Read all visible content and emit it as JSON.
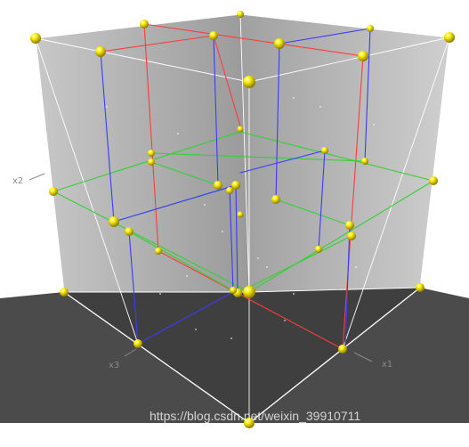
{
  "axes": {
    "x1": "x1",
    "x2": "x2",
    "x3": "x3"
  },
  "watermark": "https://blog.csdn.net/weixin_39910711",
  "colors": {
    "wall": "#b9b9b9",
    "floor": "#4a4a4a",
    "frame": "#ffffff",
    "cut_x1": "#ff3b3b",
    "cut_x2": "#33d133",
    "cut_x3": "#3a3aff",
    "point": "#f5e400"
  }
}
